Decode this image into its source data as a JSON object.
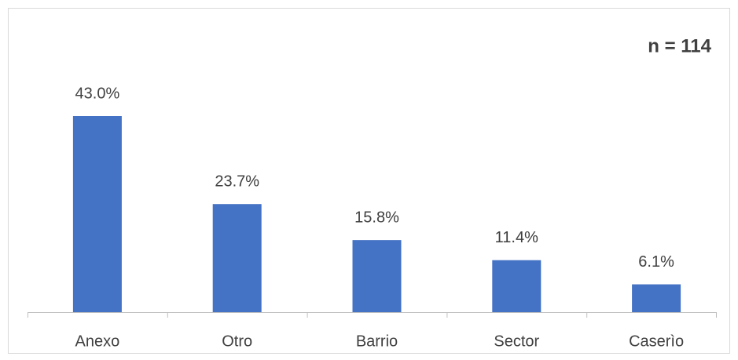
{
  "chart_data": {
    "type": "bar",
    "annotation": "n = 114",
    "categories": [
      "Anexo",
      "Otro",
      "Barrio",
      "Sector",
      "Caserìo"
    ],
    "values": [
      43.0,
      23.7,
      15.8,
      11.4,
      6.1
    ],
    "value_labels": [
      "43.0%",
      "23.7%",
      "15.8%",
      "11.4%",
      "6.1%"
    ],
    "color": "#4472c4"
  }
}
